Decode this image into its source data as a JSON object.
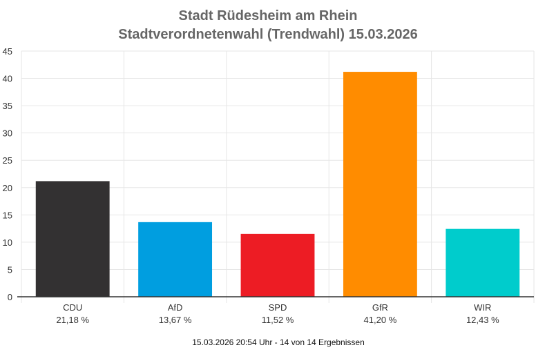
{
  "chart_data": {
    "type": "bar",
    "title": "Stadt Rüdesheim am Rhein",
    "subtitle": "Stadtverordnetenwahl (Trendwahl) 15.03.2026",
    "categories": [
      "CDU",
      "AfD",
      "SPD",
      "GfR",
      "WIR"
    ],
    "category_labels": [
      "21,18 %",
      "13,67 %",
      "11,52 %",
      "41,20 %",
      "12,43 %"
    ],
    "values": [
      21.18,
      13.67,
      11.52,
      41.2,
      12.43
    ],
    "colors": [
      "#333132",
      "#009ee0",
      "#ed1c24",
      "#ff8c00",
      "#00cccc"
    ],
    "ylim": [
      0,
      45
    ],
    "yticks": [
      0,
      5,
      10,
      15,
      20,
      25,
      30,
      35,
      40,
      45
    ],
    "grid": true,
    "legend": "none",
    "footer": "15.03.2026 20:54 Uhr - 14 von 14 Ergebnissen"
  }
}
